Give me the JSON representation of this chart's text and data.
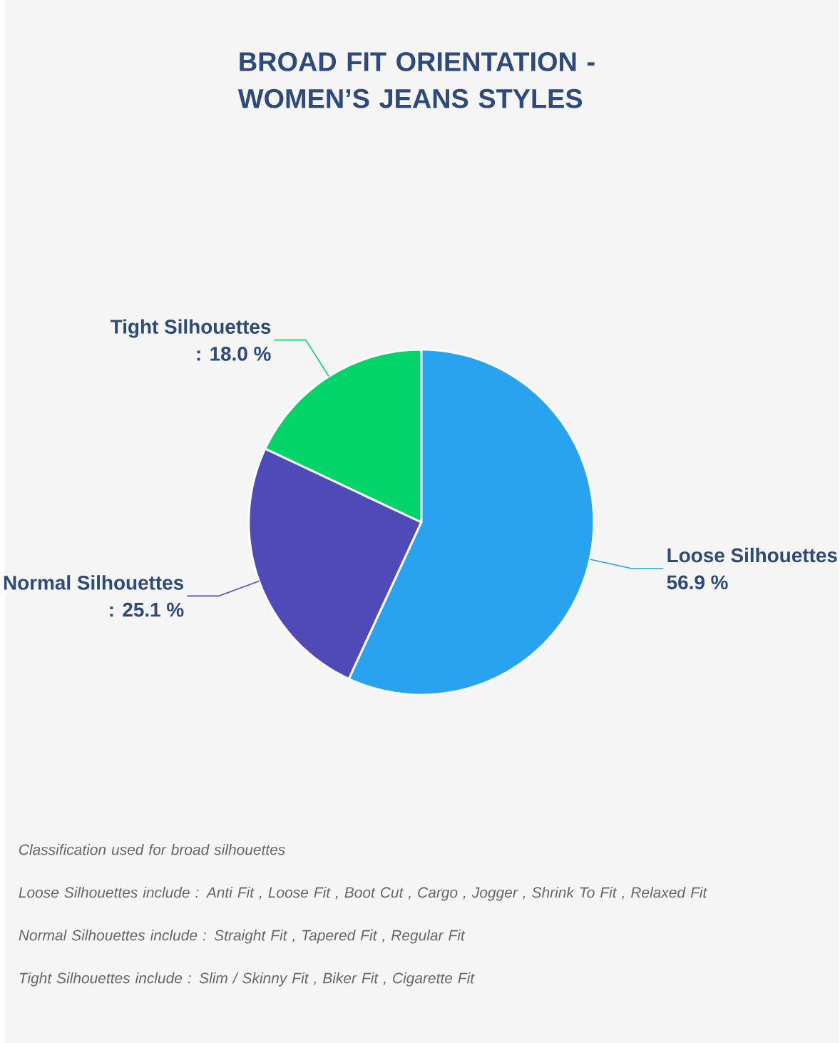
{
  "chart_data": {
    "type": "pie",
    "title": "BROAD FIT ORIENTATION - WOMEN’S JEANS STYLES",
    "categories": [
      "Loose Silhouettes",
      "Normal Silhouettes",
      "Tight Silhouettes"
    ],
    "values": [
      56.9,
      25.1,
      18.0
    ],
    "value_labels": [
      "56.9 %",
      ": 25.1 %",
      ": 18.0 %"
    ],
    "colors": [
      "#29a3ef",
      "#4f4ab8",
      "#02d46a"
    ],
    "annotations": [
      "Classification used for broad silhouettes",
      "Loose Silhouettes include : Anti Fit , Loose Fit , Boot Cut , Cargo , Jogger , Shrink To Fit , Relaxed Fit",
      "Normal Silhouettes include : Straight Fit , Tapered Fit , Regular Fit",
      "Tight Silhouettes include : Slim / Skinny Fit , Biker Fit , Cigarette Fit"
    ]
  }
}
